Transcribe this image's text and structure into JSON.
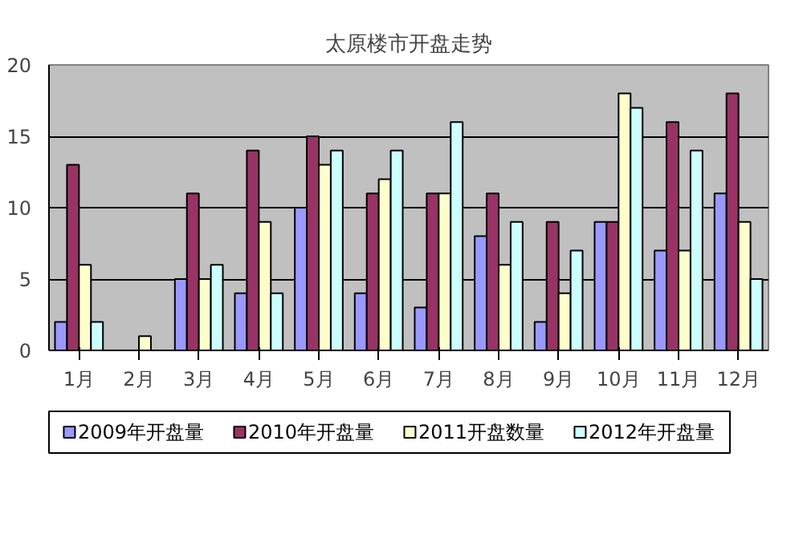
{
  "chart_data": {
    "type": "bar",
    "title": "太原楼市开盘走势",
    "categories": [
      "1月",
      "2月",
      "3月",
      "4月",
      "5月",
      "6月",
      "7月",
      "8月",
      "9月",
      "10月",
      "11月",
      "12月"
    ],
    "series": [
      {
        "name": "2009年开盘量",
        "color": "#9999ff",
        "values": [
          2,
          0,
          5,
          4,
          10,
          4,
          3,
          8,
          2,
          9,
          7,
          11
        ]
      },
      {
        "name": "2010年开盘量",
        "color": "#993366",
        "values": [
          13,
          0,
          11,
          14,
          15,
          11,
          11,
          11,
          9,
          9,
          16,
          18
        ]
      },
      {
        "name": "2011开盘数量",
        "color": "#ffffcc",
        "values": [
          6,
          1,
          5,
          9,
          13,
          12,
          11,
          6,
          4,
          18,
          7,
          9
        ]
      },
      {
        "name": "2012年开盘量",
        "color": "#ccffff",
        "values": [
          2,
          0,
          6,
          4,
          14,
          14,
          16,
          9,
          7,
          17,
          14,
          5
        ]
      }
    ],
    "ylim": [
      0,
      20
    ],
    "yticks": [
      0,
      5,
      10,
      15,
      20
    ],
    "grid": "y",
    "legend": "bottom"
  }
}
